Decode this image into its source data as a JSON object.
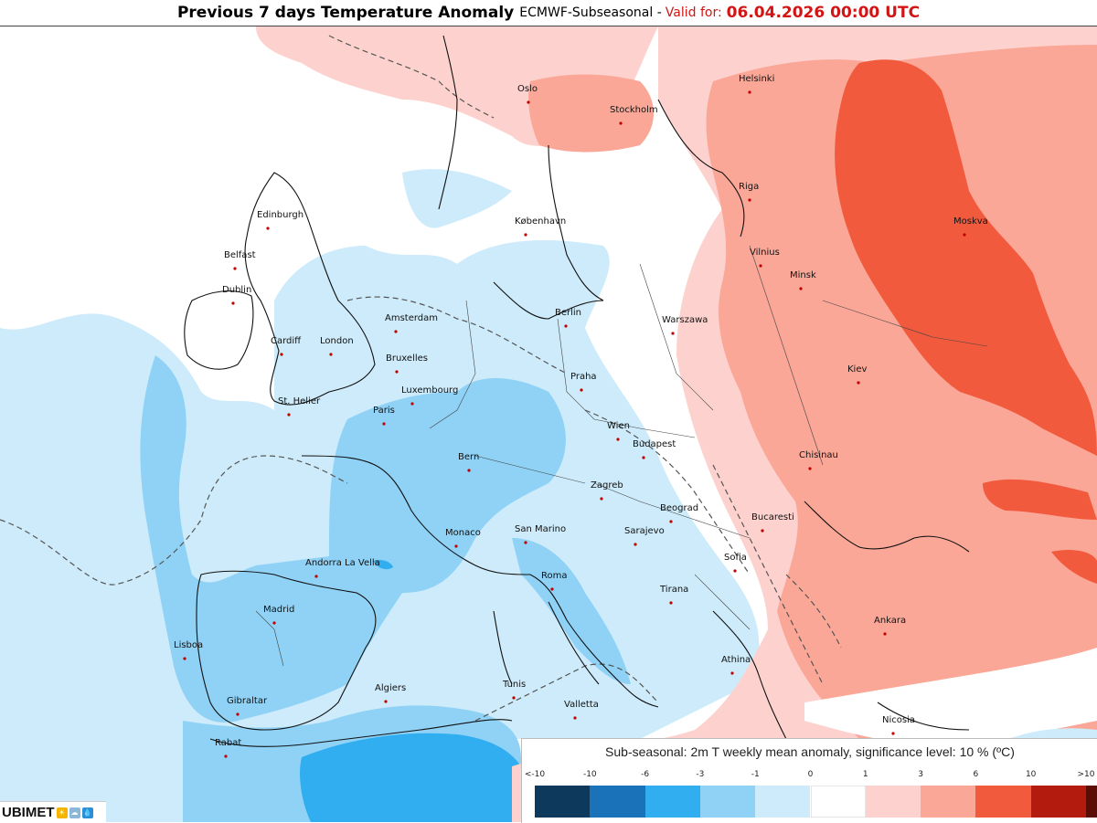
{
  "header": {
    "title": "Previous 7 days Temperature Anomaly",
    "subtitle": "ECMWF-Subseasonal -",
    "valid_label": "Valid for:",
    "valid_value": "06.04.2026 00:00 UTC"
  },
  "cities": [
    {
      "name": "Oslo"
    },
    {
      "name": "Stockholm"
    },
    {
      "name": "Helsinki"
    },
    {
      "name": "Edinburgh"
    },
    {
      "name": "Riga"
    },
    {
      "name": "København"
    },
    {
      "name": "Moskva"
    },
    {
      "name": "Belfast"
    },
    {
      "name": "Vilnius"
    },
    {
      "name": "Dublin"
    },
    {
      "name": "Minsk"
    },
    {
      "name": "Amsterdam"
    },
    {
      "name": "Berlin"
    },
    {
      "name": "Cardiff"
    },
    {
      "name": "London"
    },
    {
      "name": "Warszawa"
    },
    {
      "name": "Bruxelles"
    },
    {
      "name": "Kiev"
    },
    {
      "name": "Praha"
    },
    {
      "name": "Luxembourg"
    },
    {
      "name": "St. Helier"
    },
    {
      "name": "Paris"
    },
    {
      "name": "Wien"
    },
    {
      "name": "Budapest"
    },
    {
      "name": "Chisinau"
    },
    {
      "name": "Bern"
    },
    {
      "name": "Zagreb"
    },
    {
      "name": "Beograd"
    },
    {
      "name": "Bucaresti"
    },
    {
      "name": "Monaco"
    },
    {
      "name": "San Marino"
    },
    {
      "name": "Sarajevo"
    },
    {
      "name": "Sofia"
    },
    {
      "name": "Andorra La Vella"
    },
    {
      "name": "Roma"
    },
    {
      "name": "Tirana"
    },
    {
      "name": "Madrid"
    },
    {
      "name": "Ankara"
    },
    {
      "name": "Lisboa"
    },
    {
      "name": "Athina"
    },
    {
      "name": "Algiers"
    },
    {
      "name": "Tunis"
    },
    {
      "name": "Gibraltar"
    },
    {
      "name": "Valletta"
    },
    {
      "name": "Nicosia"
    },
    {
      "name": "Rabat"
    }
  ],
  "legend": {
    "title": "Sub-seasonal: 2m T weekly mean anomaly, significance level: 10 % (ºC)",
    "ticks": [
      "<-10",
      "-10",
      "-6",
      "-3",
      "-1",
      "0",
      "1",
      "3",
      "6",
      "10",
      ">10"
    ],
    "colors": [
      "#0d3a5c",
      "#1a72b8",
      "#30aef0",
      "#8fd2f6",
      "#cdebfa",
      "#ffffff",
      "#fdd2ce",
      "#fba797",
      "#f25a3e",
      "#b31b0e",
      "#5a0c05"
    ]
  },
  "logo": {
    "text": "UBIMET"
  }
}
